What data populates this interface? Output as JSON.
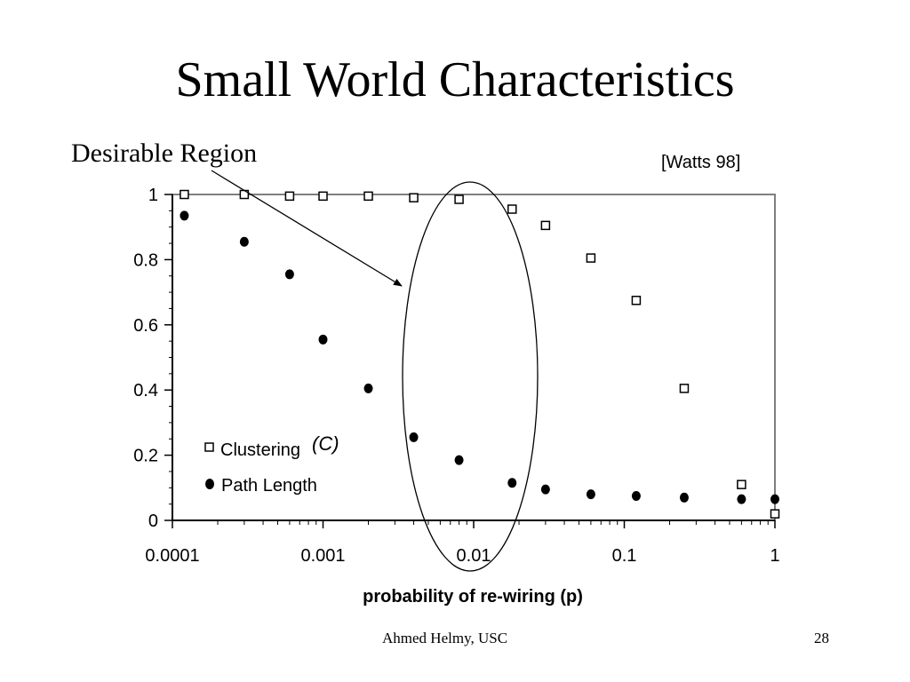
{
  "slide": {
    "title": "Small World Characteristics",
    "region_label": "Desirable Region",
    "citation": "[Watts 98]",
    "footer_author": "Ahmed Helmy, USC",
    "page_number": "28"
  },
  "chart_data": {
    "type": "scatter",
    "xlabel": "probability of re-wiring (p)",
    "ylabel": "",
    "x_scale": "log",
    "xlim": [
      0.0001,
      1
    ],
    "ylim": [
      0,
      1
    ],
    "x_ticks": [
      {
        "value": 0.0001,
        "label": "0.0001"
      },
      {
        "value": 0.001,
        "label": "0.001"
      },
      {
        "value": 0.01,
        "label": "0.01"
      },
      {
        "value": 0.1,
        "label": "0.1"
      },
      {
        "value": 1,
        "label": "1"
      }
    ],
    "y_ticks": [
      {
        "value": 0,
        "label": "0"
      },
      {
        "value": 0.2,
        "label": "0.2"
      },
      {
        "value": 0.4,
        "label": "0.4"
      },
      {
        "value": 0.6,
        "label": "0.6"
      },
      {
        "value": 0.8,
        "label": "0.8"
      },
      {
        "value": 1,
        "label": "1"
      }
    ],
    "legend_position": "lower-left",
    "legend_annotation": "(C)",
    "series": [
      {
        "name": "Clustering",
        "marker": "open-square",
        "x": [
          0.00012,
          0.0003,
          0.0006,
          0.001,
          0.002,
          0.004,
          0.008,
          0.018,
          0.03,
          0.06,
          0.12,
          0.25,
          0.6,
          1.0
        ],
        "y": [
          1.0,
          1.0,
          0.995,
          0.995,
          0.995,
          0.99,
          0.985,
          0.955,
          0.905,
          0.805,
          0.675,
          0.405,
          0.11,
          0.02
        ]
      },
      {
        "name": "Path Length",
        "marker": "filled-circle",
        "x": [
          0.00012,
          0.0003,
          0.0006,
          0.001,
          0.002,
          0.004,
          0.008,
          0.018,
          0.03,
          0.06,
          0.12,
          0.25,
          0.6,
          1.0
        ],
        "y": [
          0.935,
          0.855,
          0.755,
          0.555,
          0.405,
          0.255,
          0.185,
          0.115,
          0.095,
          0.08,
          0.075,
          0.07,
          0.065,
          0.065
        ]
      }
    ]
  }
}
